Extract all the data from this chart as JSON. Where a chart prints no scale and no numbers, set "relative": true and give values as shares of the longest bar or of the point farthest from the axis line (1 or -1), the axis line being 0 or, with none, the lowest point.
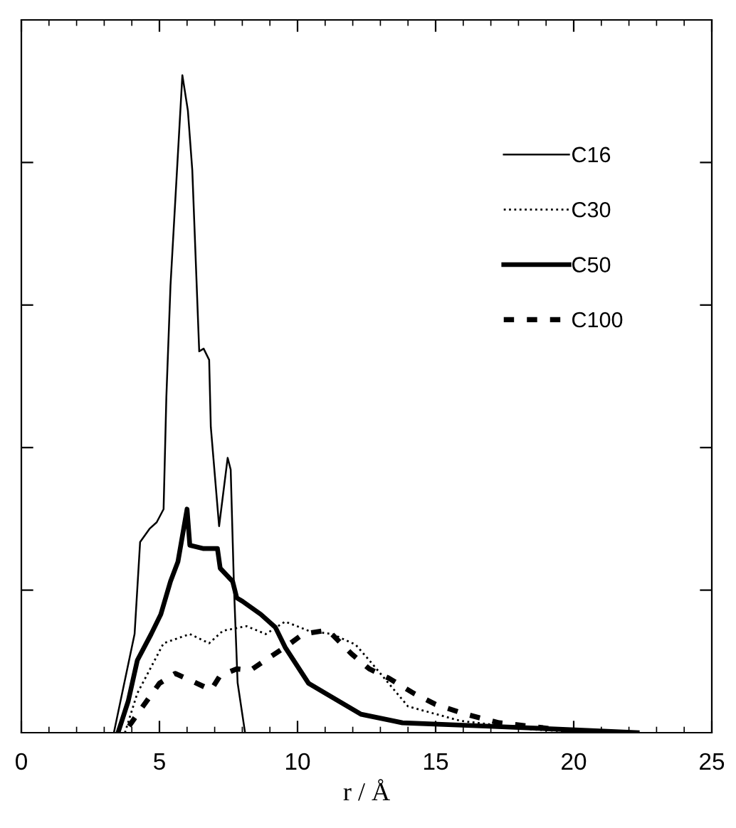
{
  "chart_data": {
    "type": "line",
    "xlabel": "r / Å",
    "relative": true,
    "tick_labels": "x",
    "xlim": [
      0,
      25
    ],
    "xticks": [
      0,
      5,
      10,
      15,
      20,
      25
    ],
    "legend": "top right",
    "grid": false,
    "marker": "none",
    "series": [
      {
        "name": "C16",
        "color": "#000000",
        "line_style": "solid",
        "x": [
          3.35,
          4.1,
          4.3,
          4.64,
          4.9,
          5.15,
          5.25,
          5.4,
          5.83,
          6.03,
          6.19,
          6.44,
          6.6,
          6.8,
          6.86,
          7.16,
          7.47,
          7.58,
          7.7,
          7.83,
          8.1
        ],
        "values": [
          0,
          0.15,
          0.29,
          0.31,
          0.32,
          0.34,
          0.51,
          0.68,
          1.0,
          0.946,
          0.855,
          0.58,
          0.584,
          0.567,
          0.465,
          0.314,
          0.418,
          0.4,
          0.22,
          0.076,
          0
        ]
      },
      {
        "name": "C30",
        "color": "#000000",
        "line_style": "dotted",
        "x": [
          3.75,
          4.2,
          4.7,
          5.15,
          6.1,
          6.8,
          7.3,
          8.15,
          8.85,
          9.55,
          10.4,
          11.25,
          12.1,
          12.6,
          13.3,
          14.0,
          15.9,
          18.5,
          20.6
        ],
        "values": [
          0,
          0.06,
          0.1,
          0.136,
          0.15,
          0.136,
          0.155,
          0.162,
          0.15,
          0.169,
          0.155,
          0.15,
          0.134,
          0.11,
          0.075,
          0.04,
          0.018,
          0.005,
          0
        ]
      },
      {
        "name": "C50",
        "color": "#000000",
        "line_style": "solid",
        "x": [
          3.5,
          3.87,
          4.2,
          4.7,
          5.05,
          5.4,
          5.67,
          6.0,
          6.1,
          6.6,
          7.1,
          7.2,
          7.65,
          7.8,
          8.0,
          8.67,
          9.2,
          9.55,
          10.4,
          11.25,
          12.3,
          13.8,
          16.8,
          20.2,
          22.3
        ],
        "values": [
          0,
          0.048,
          0.11,
          0.15,
          0.18,
          0.23,
          0.26,
          0.34,
          0.285,
          0.28,
          0.28,
          0.25,
          0.23,
          0.205,
          0.2,
          0.18,
          0.16,
          0.13,
          0.075,
          0.054,
          0.028,
          0.015,
          0.01,
          0.004,
          0
        ]
      },
      {
        "name": "C100",
        "color": "#000000",
        "line_style": "dashed",
        "x": [
          3.9,
          4.4,
          5.0,
          5.57,
          6.1,
          6.87,
          7.2,
          7.8,
          8.3,
          9.0,
          9.55,
          10.2,
          11.1,
          11.95,
          12.6,
          13.3,
          14.2,
          15.0,
          16.1,
          17.3,
          19.4,
          20.5
        ],
        "values": [
          0.01,
          0.04,
          0.075,
          0.09,
          0.08,
          0.065,
          0.087,
          0.097,
          0.095,
          0.115,
          0.13,
          0.15,
          0.156,
          0.12,
          0.097,
          0.083,
          0.06,
          0.043,
          0.028,
          0.015,
          0.005,
          0
        ]
      }
    ]
  }
}
